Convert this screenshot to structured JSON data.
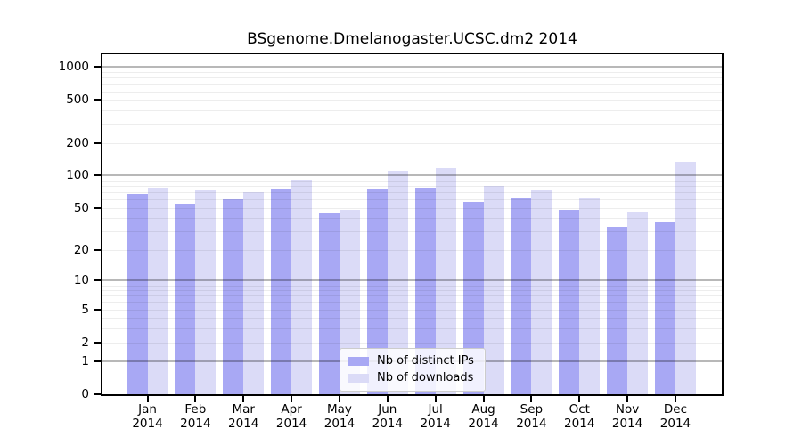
{
  "chart_data": {
    "type": "bar",
    "title": "BSgenome.Dmelanogaster.UCSC.dm2 2014",
    "categories": [
      "Jan",
      "Feb",
      "Mar",
      "Apr",
      "May",
      "Jun",
      "Jul",
      "Aug",
      "Sep",
      "Oct",
      "Nov",
      "Dec"
    ],
    "category_year": "2014",
    "series": [
      {
        "name": "Nb of distinct IPs",
        "color": "#a8a8f4",
        "values": [
          68,
          55,
          60,
          76,
          45,
          76,
          78,
          57,
          62,
          48,
          33,
          37
        ]
      },
      {
        "name": "Nb of downloads",
        "color": "#dbdbf7",
        "values": [
          78,
          75,
          70,
          92,
          48,
          110,
          118,
          80,
          73,
          62,
          46,
          135
        ]
      }
    ],
    "y_scale": "log1p",
    "y_ticks": [
      0,
      1,
      2,
      5,
      10,
      20,
      50,
      100,
      200,
      500,
      1000
    ],
    "ylim": [
      0,
      1100
    ],
    "grid": "major-and-minor-horizontal",
    "legend_position": "lower center",
    "xlabel": "",
    "ylabel": ""
  },
  "colors": {
    "distinct_ips_bar": "#a8a8f4",
    "downloads_bar": "#dbdbf7",
    "major_grid": "rgba(0,0,0,0.28)",
    "minor_grid": "rgba(0,0,0,0.07)",
    "axis_frame": "#000000",
    "legend_border": "#cccccc",
    "legend_background": "rgba(255,255,255,0.84)",
    "text": "#000000"
  }
}
